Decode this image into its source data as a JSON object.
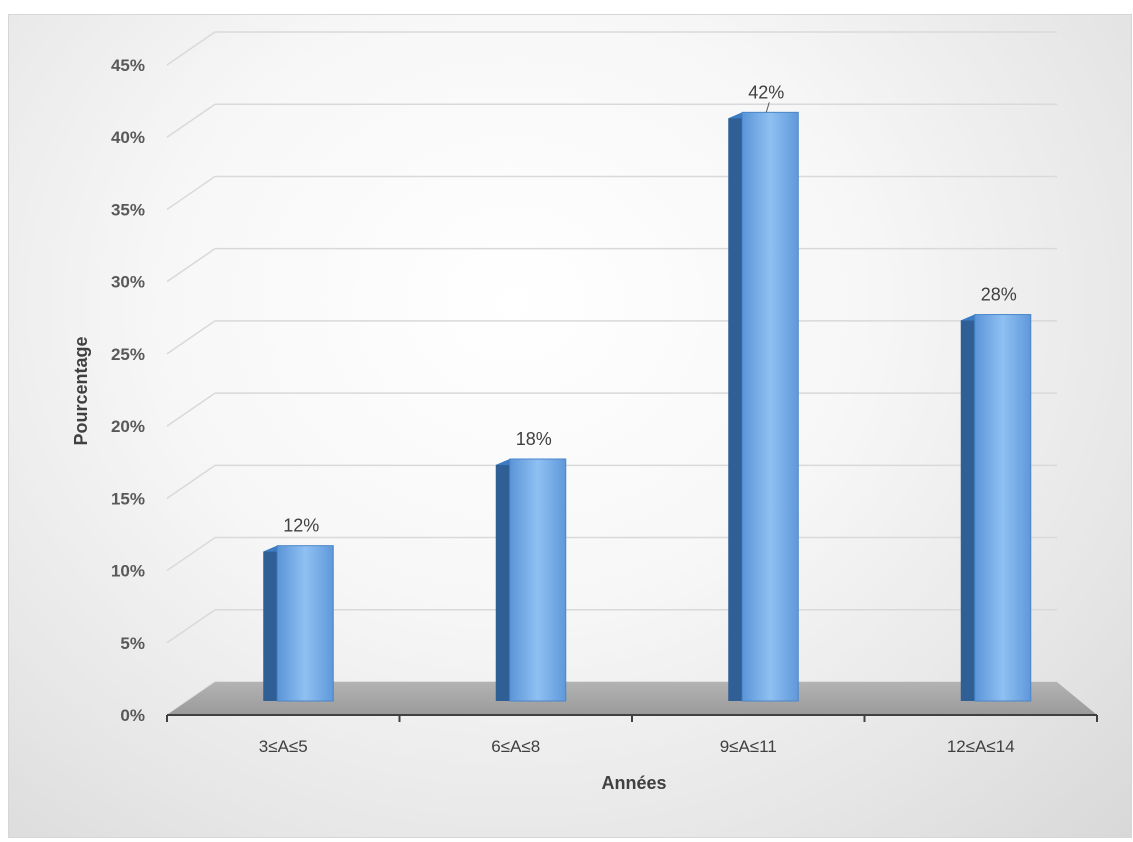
{
  "chart_data": {
    "type": "bar",
    "style": "3d-column",
    "categories": [
      "3≤A≤5",
      "6≤A≤8",
      "9≤A≤11",
      "12≤A≤14"
    ],
    "values": [
      12,
      18,
      42,
      28
    ],
    "data_labels": [
      "12%",
      "18%",
      "42%",
      "28%"
    ],
    "xlabel": "Années",
    "ylabel": "Pourcentage",
    "ylim": [
      0,
      45
    ],
    "y_ticks": [
      "0%",
      "5%",
      "10%",
      "15%",
      "20%",
      "25%",
      "30%",
      "35%",
      "40%",
      "45%"
    ],
    "grid": true,
    "legend": "none",
    "colors": {
      "bar_front": "#6fa8e8",
      "bar_side": "#2f5f94",
      "bar_top": "#3d7cc4",
      "floor": "#a6a6a6",
      "gridline": "#d9d9d9"
    }
  }
}
